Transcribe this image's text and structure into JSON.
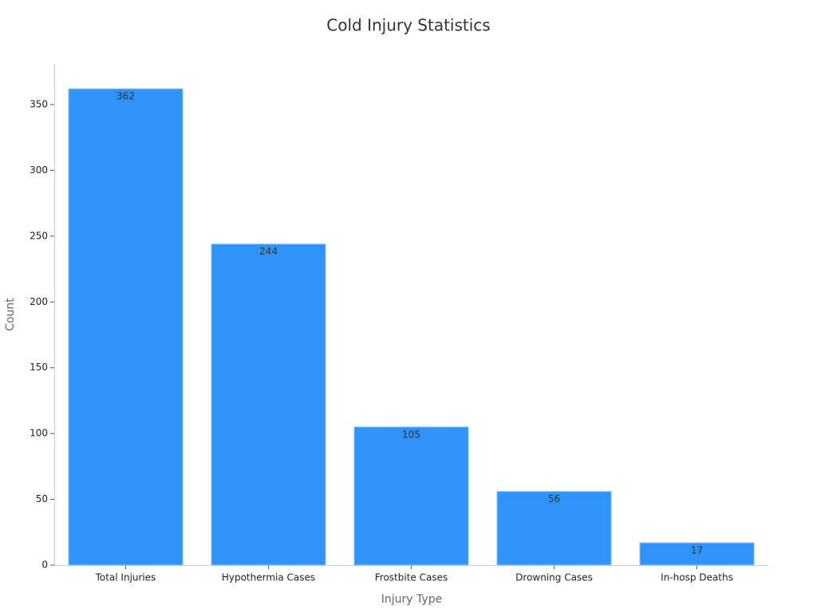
{
  "chart_data": {
    "type": "bar",
    "title": "Cold Injury Statistics",
    "x_label": "Injury Type",
    "y_label": "Count",
    "categories": [
      "Total Injuries",
      "Hypothermia Cases",
      "Frostbite Cases",
      "Drowning Cases",
      "In-hosp Deaths"
    ],
    "values": [
      362,
      244,
      105,
      56,
      17
    ],
    "color": "#2e93fa",
    "ylim": [
      0,
      380
    ],
    "yticks": [
      0,
      50,
      100,
      150,
      200,
      250,
      300,
      350
    ],
    "grid": false
  }
}
